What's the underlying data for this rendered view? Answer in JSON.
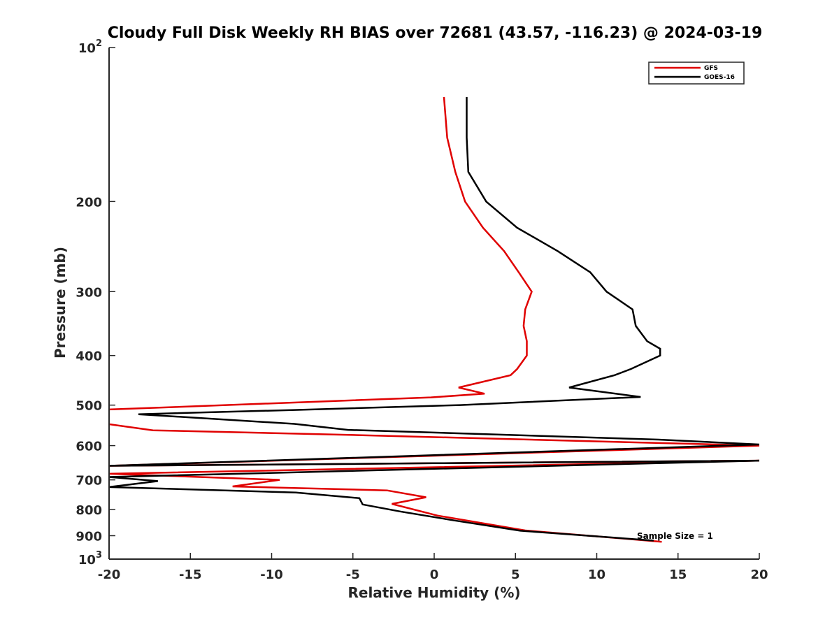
{
  "chart_data": {
    "type": "line",
    "title": "Cloudy Full Disk Weekly RH BIAS over 72681 (43.57, -116.23) @ 2024-03-19",
    "xlabel": "Relative Humidity (%)",
    "ylabel": "Pressure (mb)",
    "xlim": [
      -20,
      20
    ],
    "ylim": [
      100,
      1000
    ],
    "y_scale": "log",
    "y_reversed": true,
    "x_ticks": [
      -20,
      -15,
      -10,
      -5,
      0,
      5,
      10,
      15,
      20
    ],
    "x_tick_labels": [
      "-20",
      "-15",
      "-10",
      "-5",
      "0",
      "5",
      "10",
      "15",
      "20"
    ],
    "y_ticks": [
      100,
      200,
      300,
      400,
      500,
      600,
      700,
      800,
      900,
      1000
    ],
    "y_tick_labels": [
      {
        "base": "10",
        "exp": "2"
      },
      {
        "base": "200",
        "exp": ""
      },
      {
        "base": "300",
        "exp": ""
      },
      {
        "base": "400",
        "exp": ""
      },
      {
        "base": "500",
        "exp": ""
      },
      {
        "base": "600",
        "exp": ""
      },
      {
        "base": "700",
        "exp": ""
      },
      {
        "base": "800",
        "exp": ""
      },
      {
        "base": "900",
        "exp": ""
      },
      {
        "base": "10",
        "exp": "3"
      }
    ],
    "grid": false,
    "legend_position": "top-right",
    "annotation": "Sample Size = 1",
    "series": [
      {
        "name": "GFS",
        "color": "#e00000",
        "points": [
          [
            0.6,
            125
          ],
          [
            0.8,
            150
          ],
          [
            1.3,
            175
          ],
          [
            1.9,
            200
          ],
          [
            3.0,
            225
          ],
          [
            4.3,
            250
          ],
          [
            5.2,
            275
          ],
          [
            6.0,
            300
          ],
          [
            5.6,
            325
          ],
          [
            5.5,
            350
          ],
          [
            5.7,
            375
          ],
          [
            5.7,
            400
          ],
          [
            5.1,
            425
          ],
          [
            4.7,
            437
          ],
          [
            1.5,
            462
          ],
          [
            3.1,
            475
          ],
          [
            -0.2,
            483
          ],
          [
            -9.9,
            496
          ],
          [
            -20.0,
            510
          ],
          [
            -20.4,
            533
          ],
          [
            -20.0,
            545
          ],
          [
            -17.3,
            560
          ],
          [
            -5.0,
            572
          ],
          [
            20.0,
            600
          ],
          [
            -20.0,
            657
          ],
          [
            20.0,
            642
          ],
          [
            -20.0,
            681
          ],
          [
            -9.5,
            700
          ],
          [
            -12.4,
            721
          ],
          [
            -2.9,
            734
          ],
          [
            -0.5,
            757
          ],
          [
            -2.6,
            780
          ],
          [
            0.2,
            822
          ],
          [
            5.6,
            879
          ],
          [
            14.0,
            925
          ]
        ]
      },
      {
        "name": "GOES-16",
        "color": "#000000",
        "points": [
          [
            2.0,
            125
          ],
          [
            2.0,
            150
          ],
          [
            2.1,
            175
          ],
          [
            3.2,
            200
          ],
          [
            5.1,
            225
          ],
          [
            7.6,
            250
          ],
          [
            9.6,
            275
          ],
          [
            10.6,
            300
          ],
          [
            12.2,
            325
          ],
          [
            12.4,
            350
          ],
          [
            13.1,
            375
          ],
          [
            13.9,
            388
          ],
          [
            13.9,
            400
          ],
          [
            12.1,
            425
          ],
          [
            11.1,
            437
          ],
          [
            8.3,
            462
          ],
          [
            12.7,
            482
          ],
          [
            1.6,
            500
          ],
          [
            -8.6,
            511
          ],
          [
            -18.2,
            521
          ],
          [
            -8.6,
            544
          ],
          [
            -5.3,
            559
          ],
          [
            13.8,
            584
          ],
          [
            20.0,
            597
          ],
          [
            -20.0,
            657
          ],
          [
            20.0,
            642
          ],
          [
            -20.0,
            691
          ],
          [
            -17.0,
            704
          ],
          [
            -20.0,
            723
          ],
          [
            -8.5,
            741
          ],
          [
            -4.6,
            760
          ],
          [
            -4.4,
            782
          ],
          [
            -2.1,
            807
          ],
          [
            1.0,
            838
          ],
          [
            5.3,
            880
          ],
          [
            13.5,
            920
          ]
        ]
      }
    ]
  }
}
